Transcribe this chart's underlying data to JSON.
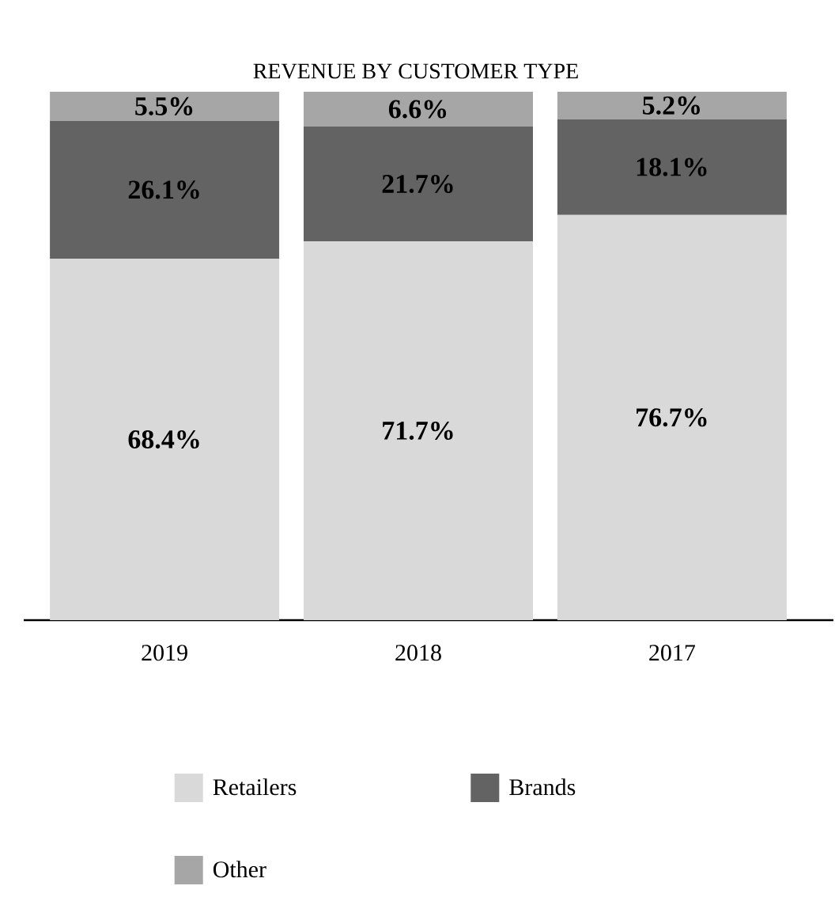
{
  "chart_data": {
    "type": "bar",
    "title": "REVENUE BY CUSTOMER TYPE",
    "stacked": true,
    "legend": "bottom",
    "categories": [
      "2019",
      "2018",
      "2017"
    ],
    "series": [
      {
        "name": "Retailers",
        "color": "#d9d9d9",
        "values": [
          68.4,
          71.7,
          76.7
        ],
        "value_labels": [
          "68.4%",
          "71.7%",
          "76.7%"
        ]
      },
      {
        "name": "Brands",
        "color": "#636363",
        "values": [
          26.1,
          21.7,
          18.1
        ],
        "value_labels": [
          "26.1%",
          "21.7%",
          "18.1%"
        ]
      },
      {
        "name": "Other",
        "color": "#a6a6a6",
        "values": [
          5.5,
          6.6,
          5.2
        ],
        "value_labels": [
          "5.5%",
          "6.6%",
          "5.2%"
        ]
      }
    ]
  }
}
